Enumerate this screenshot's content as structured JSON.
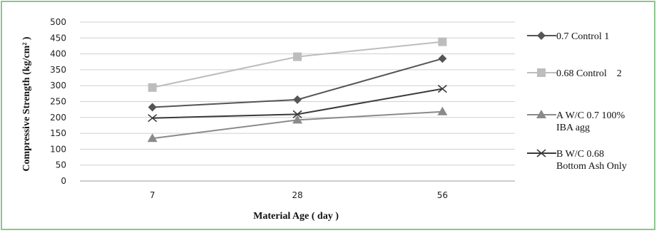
{
  "chart_data": {
    "type": "line",
    "categories": [
      "7",
      "28",
      "56"
    ],
    "xlabel": "Material Age ( day )",
    "ylabel": "Compressive Strength (kg/cm² )",
    "ylim": [
      0,
      500
    ],
    "ytick_step": 50,
    "grid": true,
    "legend_position": "right",
    "series": [
      {
        "name": "0.7 Control 1",
        "legend_lines": [
          "0.7 Control 1"
        ],
        "values": [
          232,
          256,
          385
        ],
        "color": "#555555",
        "marker": "diamond"
      },
      {
        "name": "0.68 Control 2",
        "legend_lines": [
          "0.68 Control    2"
        ],
        "values": [
          294,
          391,
          438
        ],
        "color": "#bdbdbd",
        "marker": "square"
      },
      {
        "name": "A W/C 0.7 100% IBA agg",
        "legend_lines": [
          "A W/C 0.7 100%",
          "IBA agg"
        ],
        "values": [
          134,
          192,
          218
        ],
        "color": "#8a8a8a",
        "marker": "triangle"
      },
      {
        "name": "B W/C 0.68 Bottom Ash Only",
        "legend_lines": [
          "B W/C 0.68",
          "Bottom Ash Only"
        ],
        "values": [
          198,
          210,
          290
        ],
        "color": "#3a3a3a",
        "marker": "x"
      }
    ]
  }
}
